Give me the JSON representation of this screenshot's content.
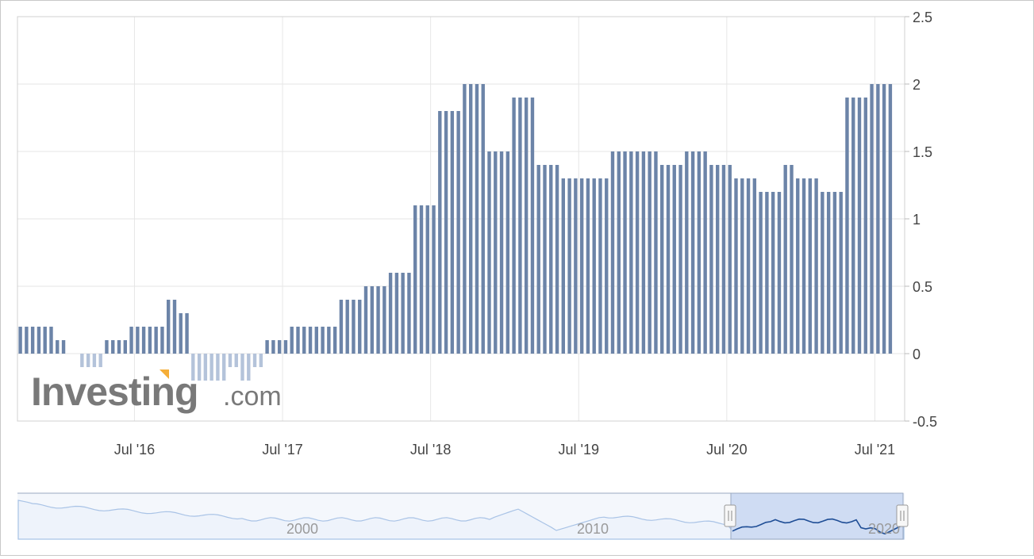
{
  "watermark": {
    "brand": "Investing",
    "suffix": ".com",
    "accent_color": "#f5a623"
  },
  "colors": {
    "bar_positive": "#6c84a8",
    "bar_negative": "#b4c3da",
    "grid": "#e6e6e6",
    "axis_text": "#444444",
    "navigator_line": "#1f4e96",
    "navigator_fill": "#cfdcf3",
    "navigator_line_light": "#a9c3e6"
  },
  "chart_data": {
    "type": "bar",
    "x": [
      "2015-10",
      "2015-11",
      "2015-12",
      "2016-01",
      "2016-02",
      "2016-03",
      "2016-04",
      "2016-05",
      "2016-06",
      "2016-07",
      "2016-08",
      "2016-09",
      "2016-10",
      "2016-11",
      "2016-12",
      "2017-01",
      "2017-02",
      "2017-03",
      "2017-04",
      "2017-05",
      "2017-06",
      "2017-07",
      "2017-08",
      "2017-09",
      "2017-10",
      "2017-11",
      "2017-12",
      "2018-01",
      "2018-02",
      "2018-03",
      "2018-04",
      "2018-05",
      "2018-06",
      "2018-07",
      "2018-08",
      "2018-09",
      "2018-10",
      "2018-11",
      "2018-12",
      "2019-01",
      "2019-02",
      "2019-03",
      "2019-04",
      "2019-05",
      "2019-06",
      "2019-07",
      "2019-08",
      "2019-09",
      "2019-10",
      "2019-11",
      "2019-12",
      "2020-01",
      "2020-02",
      "2020-03",
      "2020-04",
      "2020-05",
      "2020-06",
      "2020-07",
      "2020-08",
      "2020-09",
      "2020-10",
      "2020-11",
      "2020-12",
      "2021-01",
      "2021-02",
      "2021-03",
      "2021-04",
      "2021-05",
      "2021-06",
      "2021-07",
      "2021-08"
    ],
    "values": [
      0.2,
      0.2,
      0.2,
      0.1,
      0.0,
      -0.1,
      -0.1,
      0.1,
      0.1,
      0.2,
      0.2,
      0.2,
      0.4,
      0.3,
      -0.2,
      -0.2,
      -0.2,
      -0.1,
      -0.2,
      -0.1,
      0.1,
      0.1,
      0.2,
      0.2,
      0.2,
      0.2,
      0.4,
      0.4,
      0.5,
      0.5,
      0.6,
      0.6,
      1.1,
      1.1,
      1.8,
      1.8,
      2.0,
      2.0,
      1.5,
      1.5,
      1.9,
      1.9,
      1.4,
      1.4,
      1.3,
      1.3,
      1.3,
      1.3,
      1.5,
      1.5,
      1.5,
      1.5,
      1.4,
      1.4,
      1.5,
      1.5,
      1.4,
      1.4,
      1.3,
      1.3,
      1.2,
      1.2,
      1.4,
      1.3,
      1.3,
      1.2,
      1.2,
      1.9,
      1.9,
      2.0,
      2.0
    ],
    "y_ticks": [
      "2.5",
      "2",
      "1.5",
      "1",
      "0.5",
      "0",
      "-0.5"
    ],
    "ylim": [
      -0.5,
      2.5
    ],
    "x_tick_labels": [
      "Jul '16",
      "Jul '17",
      "Jul '18",
      "Jul '19",
      "Jul '20",
      "Jul '21"
    ],
    "grid": true,
    "y_axis_position": "right",
    "title": "",
    "xlabel": "",
    "ylabel": ""
  },
  "navigator": {
    "labels": [
      "2000",
      "2010",
      "2020"
    ]
  }
}
